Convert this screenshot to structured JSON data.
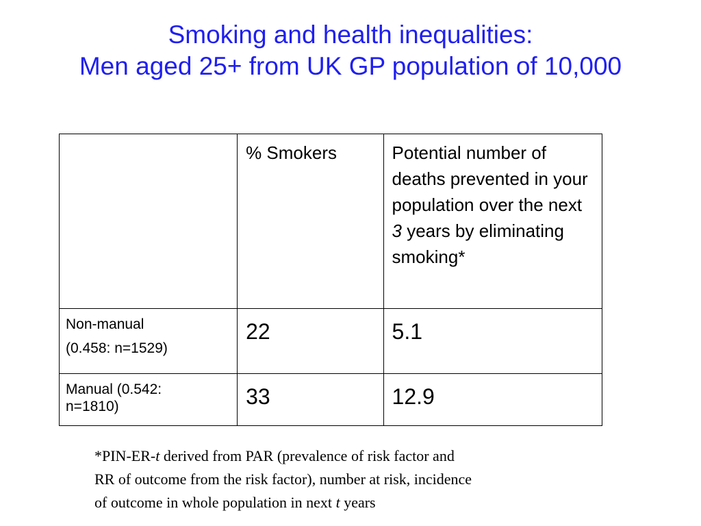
{
  "title": {
    "line1": "Smoking and health inequalities:",
    "line2": "Men aged 25+ from UK GP population of 10,000"
  },
  "table": {
    "headers": {
      "label": "",
      "smokers": "% Smokers",
      "deaths_part1": "Potential number of deaths prevented in your population over the next ",
      "deaths_italic": "3",
      "deaths_part2": " years by eliminating smoking*"
    },
    "rows": [
      {
        "label_line1": "Non-manual",
        "label_line2": "(0.458: n=1529)",
        "smokers": "22",
        "deaths": "5.1"
      },
      {
        "label_line1": "Manual (0.542:",
        "label_line2": "n=1810)",
        "smokers": "33",
        "deaths": "12.9"
      }
    ]
  },
  "footnote": {
    "part1": "*PIN-ER-",
    "t1": "t",
    "part2": " derived from PAR (prevalence of risk factor and",
    "line2": "RR of outcome from the risk factor), number at risk, incidence",
    "part3": "of outcome in whole population in next ",
    "t2": "t",
    "part4": " years"
  },
  "colors": {
    "title": "#1f1ff0",
    "text": "#000000",
    "border": "#000000",
    "background": "#ffffff"
  }
}
